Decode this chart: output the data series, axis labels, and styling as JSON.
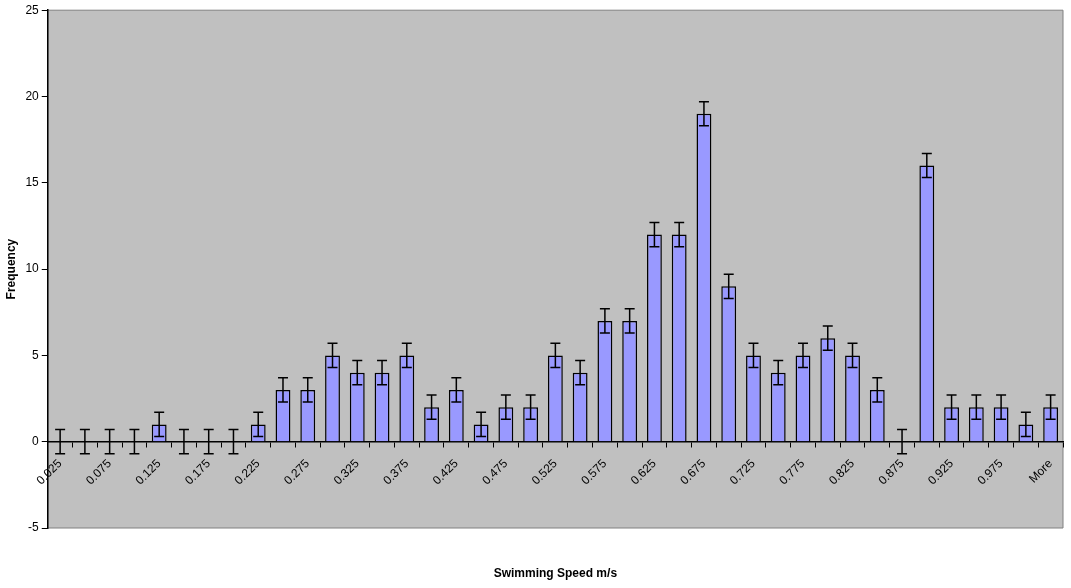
{
  "chart_data": {
    "type": "bar",
    "xlabel": "Swimming Speed m/s",
    "ylabel": "Frequency",
    "categories": [
      "0.025",
      null,
      "0.075",
      null,
      "0.125",
      null,
      "0.175",
      null,
      "0.225",
      null,
      "0.275",
      null,
      "0.325",
      null,
      "0.375",
      null,
      "0.425",
      null,
      "0.475",
      null,
      "0.525",
      null,
      "0.575",
      null,
      "0.625",
      null,
      "0.675",
      null,
      "0.725",
      null,
      "0.775",
      null,
      "0.825",
      null,
      "0.875",
      null,
      "0.925",
      null,
      "0.975",
      null,
      "More"
    ],
    "values": [
      0,
      0,
      0,
      0,
      1,
      0,
      0,
      0,
      1,
      3,
      3,
      5,
      4,
      4,
      5,
      2,
      3,
      1,
      2,
      2,
      5,
      4,
      7,
      7,
      12,
      12,
      19,
      9,
      5,
      4,
      5,
      6,
      5,
      3,
      0,
      16,
      2,
      2,
      2,
      1,
      2
    ],
    "errors": [
      0.7,
      0.7,
      0.7,
      0.7,
      0.7,
      0.7,
      0.7,
      0.7,
      0.7,
      0.7,
      0.7,
      0.7,
      0.7,
      0.7,
      0.7,
      0.7,
      0.7,
      0.7,
      0.7,
      0.7,
      0.7,
      0.7,
      0.7,
      0.7,
      0.7,
      0.7,
      0.7,
      0.7,
      0.7,
      0.7,
      0.7,
      0.7,
      0.7,
      0.7,
      0.7,
      0.7,
      0.7,
      0.7,
      0.7,
      0.7,
      0.7
    ],
    "color": "#9999ff",
    "ylim": [
      -5,
      25
    ],
    "yticks": [
      -5,
      0,
      5,
      10,
      15,
      20,
      25
    ],
    "grid": false,
    "legend": false
  }
}
